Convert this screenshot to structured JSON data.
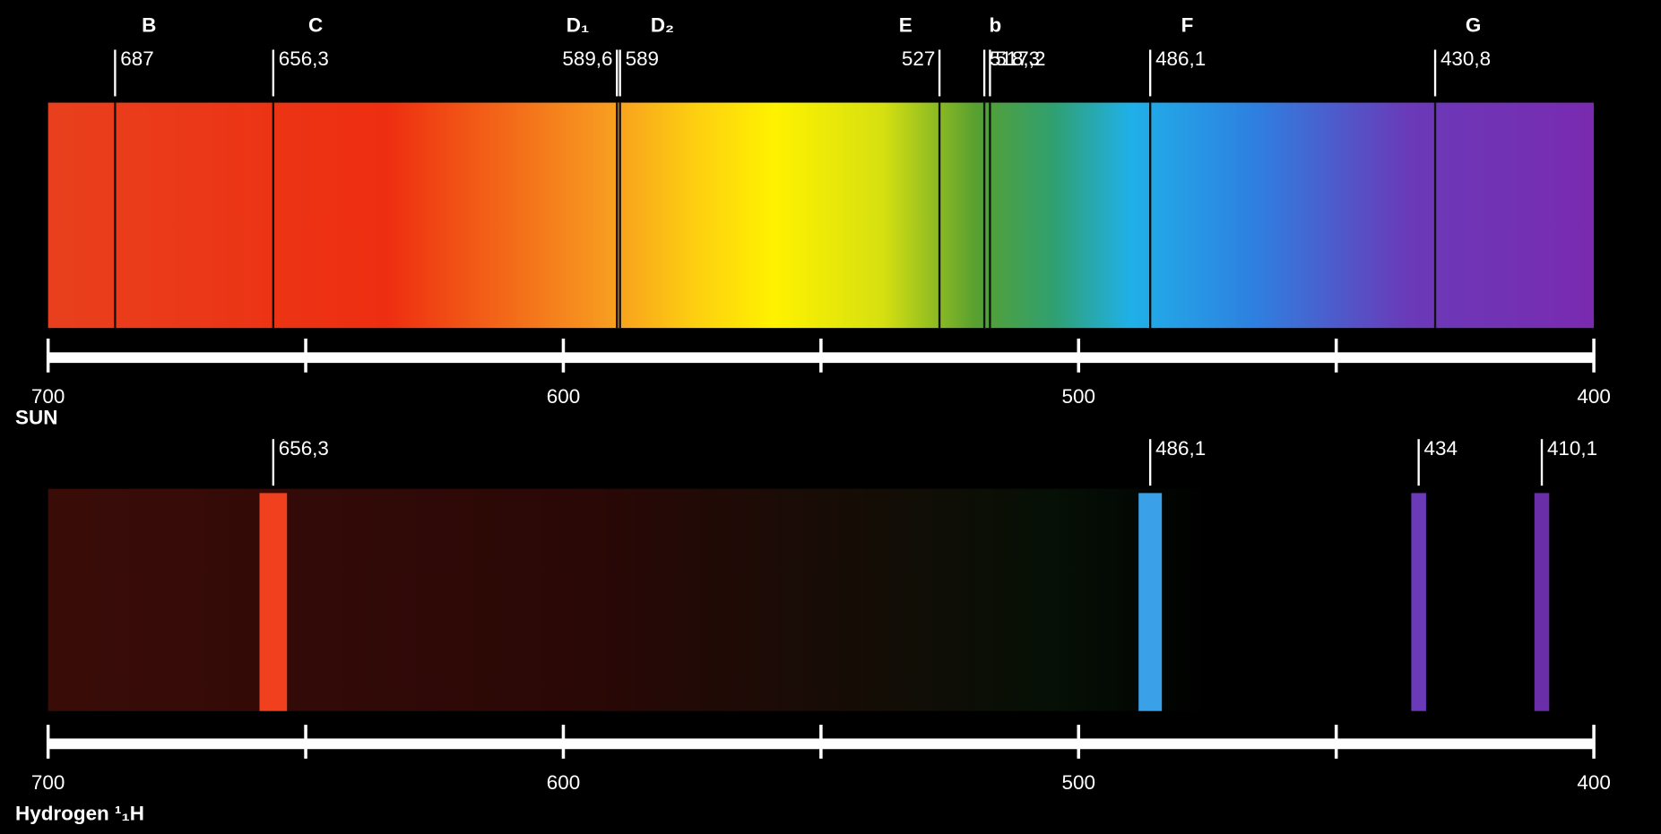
{
  "chart_data": [
    {
      "type": "spectrum",
      "label": "SUN",
      "xlim": [
        700,
        400
      ],
      "xticks": [
        700,
        600,
        500,
        400
      ],
      "minor_xticks": [
        650,
        550,
        450
      ],
      "lines": [
        {
          "name": "B",
          "wavelength": 687
        },
        {
          "name": "C",
          "wavelength": {
            "value": 656.3,
            "label": "656,3"
          }
        },
        {
          "name": "D₁",
          "wavelength": {
            "value": 589.6,
            "label": "589,6"
          }
        },
        {
          "name": "D₂",
          "wavelength": 589
        },
        {
          "name": "E",
          "wavelength": 527
        },
        {
          "wavelength": {
            "value": 518.3,
            "label": "518,3"
          }
        },
        {
          "name": "b",
          "wavelength": {
            "value": 517.2,
            "label": "517,2"
          }
        },
        {
          "name": "F",
          "wavelength": {
            "value": 486.1,
            "label": "486,1"
          }
        },
        {
          "name": "G",
          "wavelength": {
            "value": 430.8,
            "label": "430,8"
          }
        }
      ],
      "line_color": "#111111"
    },
    {
      "type": "emission",
      "label": "Hydrogen ¹₁H",
      "xlim": [
        700,
        400
      ],
      "xticks": [
        700,
        600,
        500,
        400
      ],
      "minor_xticks": [
        650,
        550,
        450
      ],
      "lines": [
        {
          "wavelength": {
            "value": 656.3,
            "label": "656,3"
          },
          "color": "#f0401e"
        },
        {
          "wavelength": {
            "value": 486.1,
            "label": "486,1"
          },
          "color": "#3aa0e8"
        },
        {
          "wavelength": 434,
          "color": "#6a3ab8"
        },
        {
          "wavelength": {
            "value": 410.1,
            "label": "410,1"
          },
          "color": "#6a2ea8"
        }
      ]
    }
  ]
}
